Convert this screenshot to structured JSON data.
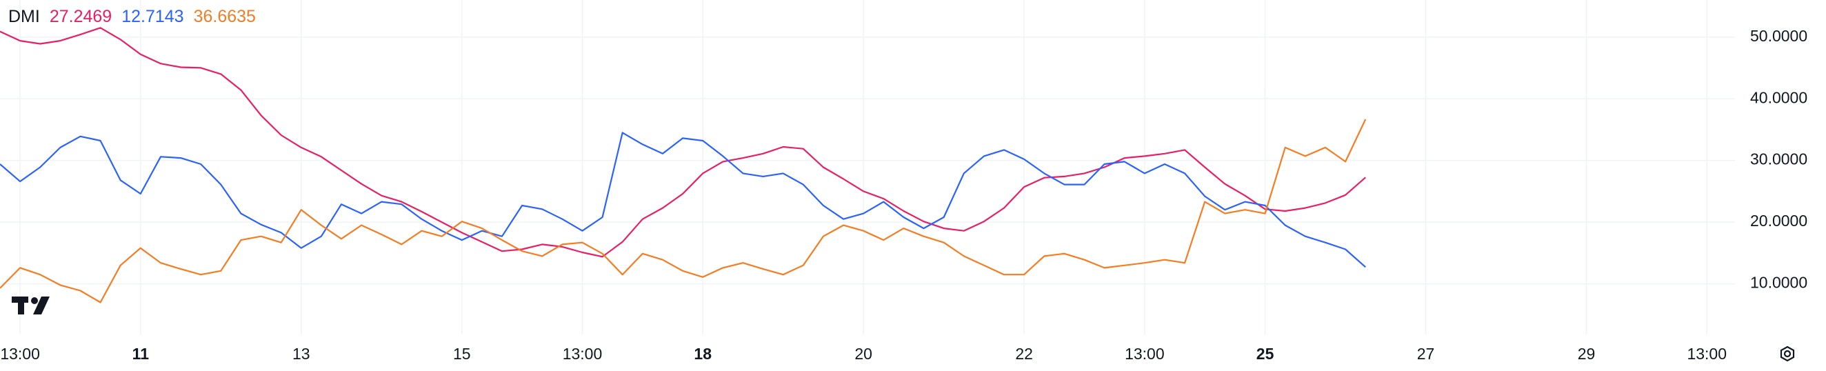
{
  "chart_data": {
    "type": "line",
    "title": "DMI",
    "series": [
      {
        "color": "#e91e63",
        "values": [
          50.9,
          49.4,
          48.9,
          49.4,
          50.4,
          51.5,
          49.6,
          47.2,
          45.7,
          45.1,
          45.0,
          44.0,
          41.4,
          37.3,
          34.1,
          32.1,
          30.6,
          28.4,
          26.2,
          24.3,
          23.3,
          21.7,
          20.0,
          18.3,
          16.8,
          15.3,
          15.6,
          16.4,
          16.0,
          15.1,
          14.4,
          16.8,
          20.5,
          22.3,
          24.6,
          27.9,
          29.8,
          30.4,
          31.1,
          32.2,
          31.9,
          28.9,
          27.0,
          25.0,
          23.8,
          21.8,
          20.1,
          19.0,
          18.6,
          20.1,
          22.3,
          25.7,
          27.2,
          27.4,
          27.9,
          28.9,
          30.4,
          30.7,
          31.1,
          31.7,
          28.9,
          26.2,
          24.3,
          22.1,
          21.8,
          22.3,
          23.1,
          24.4,
          27.2469
        ]
      },
      {
        "color": "#2962ff",
        "values": [
          29.4,
          26.6,
          28.9,
          32.1,
          33.9,
          33.2,
          26.8,
          24.6,
          30.6,
          30.4,
          29.4,
          26.1,
          21.4,
          19.6,
          18.3,
          15.8,
          17.7,
          22.9,
          21.4,
          23.3,
          22.9,
          20.5,
          18.6,
          17.1,
          18.6,
          17.7,
          22.7,
          22.1,
          20.5,
          18.6,
          20.8,
          34.5,
          32.6,
          31.1,
          33.6,
          33.2,
          30.7,
          27.9,
          27.4,
          27.9,
          26.1,
          22.7,
          20.5,
          21.4,
          23.3,
          20.8,
          19.0,
          20.8,
          27.9,
          30.7,
          31.7,
          30.2,
          27.9,
          26.1,
          26.1,
          29.4,
          29.8,
          27.9,
          29.4,
          27.9,
          24.2,
          22.0,
          23.3,
          22.7,
          19.5,
          17.7,
          16.7,
          15.6,
          12.7143
        ]
      },
      {
        "color": "#f57c20",
        "values": [
          9.3,
          12.6,
          11.5,
          9.8,
          8.9,
          7.0,
          13.0,
          15.8,
          13.4,
          12.4,
          11.5,
          12.1,
          17.1,
          17.7,
          16.7,
          22.0,
          19.5,
          17.3,
          19.5,
          18.0,
          16.4,
          18.6,
          17.7,
          20.1,
          19.0,
          17.1,
          15.3,
          14.5,
          16.4,
          16.7,
          14.9,
          11.5,
          14.9,
          13.9,
          12.1,
          11.1,
          12.6,
          13.4,
          12.4,
          11.5,
          13.0,
          17.7,
          19.5,
          18.6,
          17.1,
          19.0,
          17.7,
          16.7,
          14.5,
          13.0,
          11.5,
          11.5,
          14.5,
          14.9,
          13.9,
          12.6,
          13.0,
          13.4,
          13.9,
          13.4,
          23.3,
          21.4,
          22.0,
          21.4,
          32.1,
          30.7,
          32.1,
          29.8,
          36.6635
        ]
      }
    ],
    "xlim": [
      0,
      86.4
    ],
    "xticks": [
      {
        "value": 1,
        "label": "13:00"
      },
      {
        "value": 7,
        "label": "11",
        "bold": true
      },
      {
        "value": 15,
        "label": "13"
      },
      {
        "value": 23,
        "label": "15"
      },
      {
        "value": 29,
        "label": "13:00"
      },
      {
        "value": 35,
        "label": "18",
        "bold": true
      },
      {
        "value": 43,
        "label": "20"
      },
      {
        "value": 51,
        "label": "22"
      },
      {
        "value": 57,
        "label": "13:00"
      },
      {
        "value": 63,
        "label": "25",
        "bold": true
      },
      {
        "value": 71,
        "label": "27"
      },
      {
        "value": 79,
        "label": "29"
      },
      {
        "value": 85,
        "label": "13:00"
      }
    ],
    "ylim": [
      1.8,
      56
    ],
    "yticks": [
      {
        "value": 10,
        "label": "10.0000"
      },
      {
        "value": 20,
        "label": "20.0000"
      },
      {
        "value": 30,
        "label": "30.0000"
      },
      {
        "value": 40,
        "label": "40.0000"
      },
      {
        "value": 50,
        "label": "50.0000"
      }
    ],
    "grid": true
  }
}
